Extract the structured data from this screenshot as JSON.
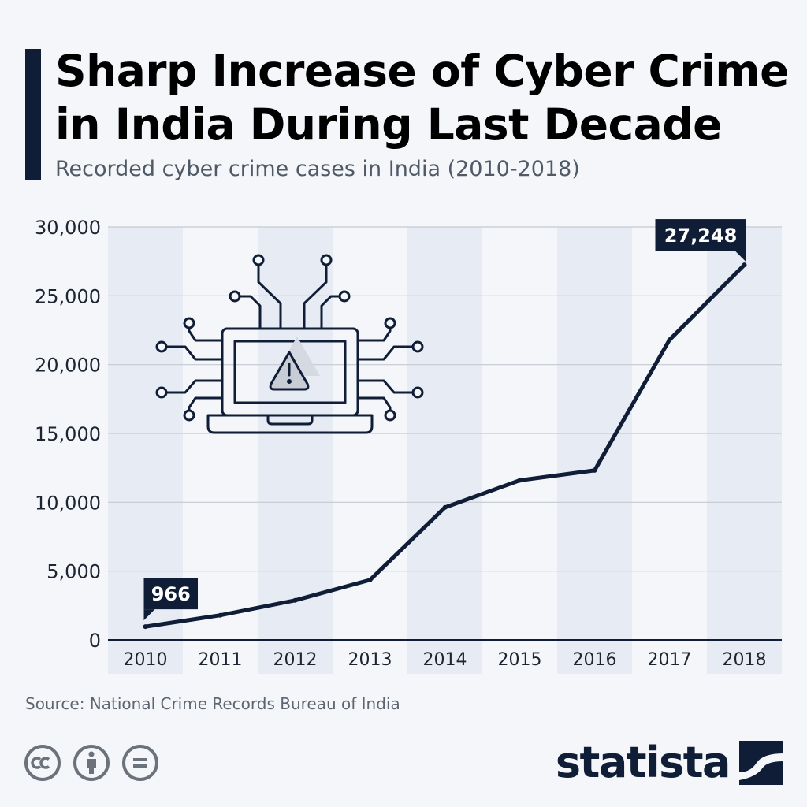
{
  "header": {
    "title_line1": "Sharp Increase of Cyber Crime",
    "title_line2": "in India During Last Decade",
    "subtitle": "Recorded cyber crime cases in India (2010-2018)"
  },
  "chart_data": {
    "type": "line",
    "title": "Sharp Increase of Cyber Crime in India During Last Decade",
    "subtitle": "Recorded cyber crime cases in India (2010-2018)",
    "xlabel": "",
    "ylabel": "",
    "categories": [
      "2010",
      "2011",
      "2012",
      "2013",
      "2014",
      "2015",
      "2016",
      "2017",
      "2018"
    ],
    "series": [
      {
        "name": "Recorded cyber crime cases",
        "values": [
          966,
          1791,
          2876,
          4356,
          9622,
          11592,
          12317,
          21796,
          27248
        ]
      }
    ],
    "ylim": [
      0,
      30000
    ],
    "yticks": [
      0,
      5000,
      10000,
      15000,
      20000,
      25000,
      30000
    ],
    "ytick_labels": [
      "0",
      "5,000",
      "10,000",
      "15,000",
      "20,000",
      "25,000",
      "30,000"
    ],
    "annotations": [
      {
        "category": "2010",
        "label": "966"
      },
      {
        "category": "2018",
        "label": "27,248"
      }
    ],
    "grid": true,
    "alternating_column_bands": true
  },
  "illustration": {
    "icon": "laptop-warning-circuit-icon"
  },
  "footer": {
    "source": "Source: National Crime Records Bureau of India",
    "license_icons": [
      "cc-icon",
      "attribution-icon",
      "no-derivatives-icon"
    ],
    "brand": "statista"
  },
  "colors": {
    "line": "#0f1d36",
    "accent": "#0f1d36",
    "band": "#e7ebf3",
    "grid": "#c5c9d0",
    "background": "#f4f6f9"
  }
}
